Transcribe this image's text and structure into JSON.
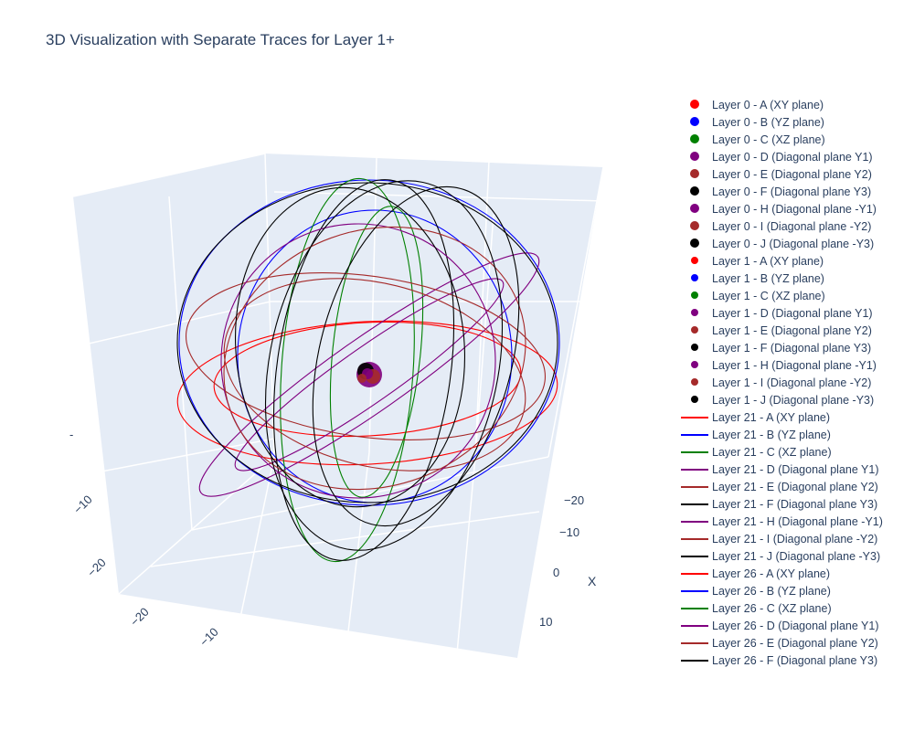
{
  "chart_data": {
    "type": "scatter3d",
    "title": "3D Visualization with Separate Traces for Layer 1+",
    "axes": {
      "x": {
        "title": "X",
        "ticks": [
          "−20",
          "−10",
          "0",
          "10"
        ]
      },
      "y": {
        "title": "",
        "ticks": [
          "−20",
          "−10"
        ]
      },
      "z": {
        "title": "",
        "ticks": [
          "−20",
          "−10"
        ]
      }
    },
    "grid": true,
    "legend_position": "right",
    "center_cluster": {
      "colors": [
        "#800080",
        "#000000",
        "#a52a2a"
      ]
    },
    "series": [
      {
        "name": "Layer 0 - A (XY plane)",
        "mode": "markers",
        "color": "#ff0000"
      },
      {
        "name": "Layer 0 - B (YZ plane)",
        "mode": "markers",
        "color": "#0000ff"
      },
      {
        "name": "Layer 0 - C (XZ plane)",
        "mode": "markers",
        "color": "#008000"
      },
      {
        "name": "Layer 0 - D (Diagonal plane Y1)",
        "mode": "markers",
        "color": "#800080"
      },
      {
        "name": "Layer 0 - E (Diagonal plane Y2)",
        "mode": "markers",
        "color": "#a52a2a"
      },
      {
        "name": "Layer 0 - F (Diagonal plane Y3)",
        "mode": "markers",
        "color": "#000000"
      },
      {
        "name": "Layer 0 - H (Diagonal plane -Y1)",
        "mode": "markers",
        "color": "#800080"
      },
      {
        "name": "Layer 0 - I (Diagonal plane -Y2)",
        "mode": "markers",
        "color": "#a52a2a"
      },
      {
        "name": "Layer 0 - J (Diagonal plane -Y3)",
        "mode": "markers",
        "color": "#000000"
      },
      {
        "name": "Layer 1 - A (XY plane)",
        "mode": "markers-small",
        "color": "#ff0000"
      },
      {
        "name": "Layer 1 - B (YZ plane)",
        "mode": "markers-small",
        "color": "#0000ff"
      },
      {
        "name": "Layer 1 - C (XZ plane)",
        "mode": "markers-small",
        "color": "#008000"
      },
      {
        "name": "Layer 1 - D (Diagonal plane Y1)",
        "mode": "markers-small",
        "color": "#800080"
      },
      {
        "name": "Layer 1 - E (Diagonal plane Y2)",
        "mode": "markers-small",
        "color": "#a52a2a"
      },
      {
        "name": "Layer 1 - F (Diagonal plane Y3)",
        "mode": "markers-small",
        "color": "#000000"
      },
      {
        "name": "Layer 1 - H (Diagonal plane -Y1)",
        "mode": "markers-small",
        "color": "#800080"
      },
      {
        "name": "Layer 1 - I (Diagonal plane -Y2)",
        "mode": "markers-small",
        "color": "#a52a2a"
      },
      {
        "name": "Layer 1 - J (Diagonal plane -Y3)",
        "mode": "markers-small",
        "color": "#000000"
      },
      {
        "name": "Layer 21 - A (XY plane)",
        "mode": "lines",
        "color": "#ff0000"
      },
      {
        "name": "Layer 21 - B (YZ plane)",
        "mode": "lines",
        "color": "#0000ff"
      },
      {
        "name": "Layer 21 - C (XZ plane)",
        "mode": "lines",
        "color": "#008000"
      },
      {
        "name": "Layer 21 - D (Diagonal plane Y1)",
        "mode": "lines",
        "color": "#800080"
      },
      {
        "name": "Layer 21 - E (Diagonal plane Y2)",
        "mode": "lines",
        "color": "#a52a2a"
      },
      {
        "name": "Layer 21 - F (Diagonal plane Y3)",
        "mode": "lines",
        "color": "#000000"
      },
      {
        "name": "Layer 21 - H (Diagonal plane -Y1)",
        "mode": "lines",
        "color": "#800080"
      },
      {
        "name": "Layer 21 - I (Diagonal plane -Y2)",
        "mode": "lines",
        "color": "#a52a2a"
      },
      {
        "name": "Layer 21 - J (Diagonal plane -Y3)",
        "mode": "lines",
        "color": "#000000"
      },
      {
        "name": "Layer 26 - A (XY plane)",
        "mode": "lines",
        "color": "#ff0000"
      },
      {
        "name": "Layer 26 - B (YZ plane)",
        "mode": "lines",
        "color": "#0000ff"
      },
      {
        "name": "Layer 26 - C (XZ plane)",
        "mode": "lines",
        "color": "#008000"
      },
      {
        "name": "Layer 26 - D (Diagonal plane Y1)",
        "mode": "lines",
        "color": "#800080"
      },
      {
        "name": "Layer 26 - E (Diagonal plane Y2)",
        "mode": "lines",
        "color": "#a52a2a"
      },
      {
        "name": "Layer 26 - F (Diagonal plane Y3)",
        "mode": "lines",
        "color": "#000000"
      }
    ]
  }
}
